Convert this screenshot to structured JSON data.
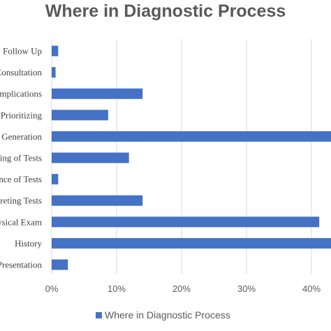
{
  "chart_data": {
    "type": "bar",
    "orientation": "horizontal",
    "title": "Where in Diagnostic Process",
    "categories": [
      "Follow Up",
      "Consultation",
      "Complications",
      "Prioritizing",
      "Generation",
      "Ordering of Tests",
      "Performance of Tests",
      "Interpreting Tests",
      "Physical Exam",
      "History",
      "Presentation"
    ],
    "series": [
      {
        "name": "Where in Diagnostic Process",
        "color": "#4472c4",
        "values": [
          1.0,
          0.6,
          14.0,
          8.7,
          44.0,
          11.9,
          1.0,
          14.0,
          41.2,
          44.0,
          2.5
        ]
      }
    ],
    "xlim": [
      0,
      45
    ],
    "xticks": [
      "0%",
      "10%",
      "20%",
      "30%",
      "40%"
    ],
    "xtick_values": [
      0,
      10,
      20,
      30,
      40
    ],
    "grid": true,
    "legend_position": "bottom",
    "xlabel": "",
    "ylabel": ""
  }
}
